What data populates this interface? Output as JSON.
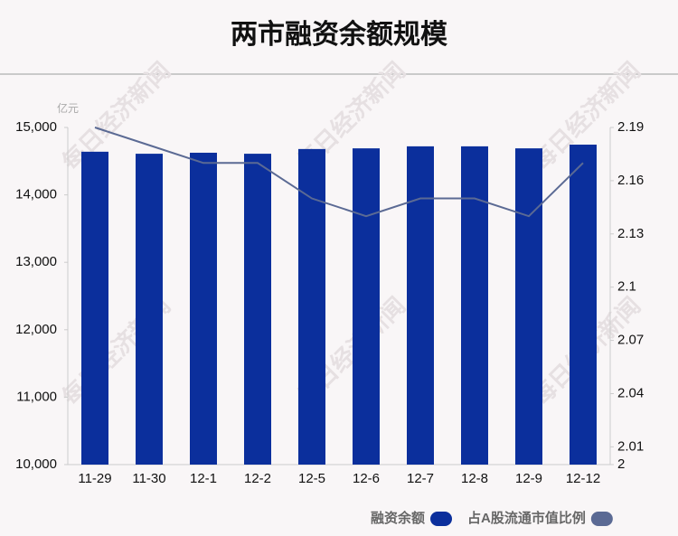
{
  "chart_data": {
    "type": "bar-line",
    "title": "两市融资余额规模",
    "y_unit": "亿元",
    "watermark": "每日经济新闻",
    "categories": [
      "11-29",
      "11-30",
      "12-1",
      "12-2",
      "12-5",
      "12-6",
      "12-7",
      "12-8",
      "12-9",
      "12-12"
    ],
    "series": [
      {
        "name": "融资余额",
        "type": "bar",
        "color": "#0b2f9c",
        "values": [
          14640,
          14610,
          14625,
          14610,
          14680,
          14690,
          14720,
          14720,
          14690,
          14745
        ]
      },
      {
        "name": "占A股流通市值比例",
        "type": "line",
        "axis": "y2",
        "color": "#5b6a94",
        "values": [
          2.19,
          2.18,
          2.17,
          2.17,
          2.15,
          2.14,
          2.15,
          2.15,
          2.14,
          2.17
        ]
      }
    ],
    "ylim": [
      10000,
      15000
    ],
    "yticks": [
      {
        "value": 10000,
        "label": "10,000"
      },
      {
        "value": 11000,
        "label": "11,000"
      },
      {
        "value": 12000,
        "label": "12,000"
      },
      {
        "value": 13000,
        "label": "13,000"
      },
      {
        "value": 14000,
        "label": "14,000"
      },
      {
        "value": 15000,
        "label": "15,000"
      }
    ],
    "y2lim": [
      2,
      2.19
    ],
    "y2ticks": [
      2,
      2.01,
      2.04,
      2.07,
      2.1,
      2.13,
      2.16,
      2.19
    ]
  }
}
